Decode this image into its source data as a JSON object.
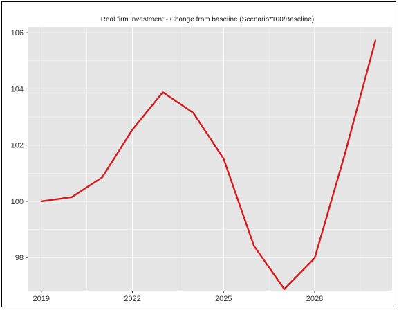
{
  "chart_data": {
    "type": "line",
    "title": "Real firm investment - Change from baseline (Scenario*100/Baseline)",
    "xlabel": "",
    "ylabel": "",
    "x": [
      2019,
      2020,
      2021,
      2022,
      2023,
      2024,
      2025,
      2026,
      2027,
      2028,
      2029,
      2030
    ],
    "series": [
      {
        "values": [
          100.0,
          100.15,
          100.85,
          102.55,
          103.88,
          103.15,
          101.52,
          98.42,
          96.88,
          97.98,
          101.7,
          105.72
        ],
        "color": "#d7191c"
      }
    ],
    "xlim": [
      2018.55,
      2030.55
    ],
    "ylim": [
      96.8,
      106.2
    ],
    "x_ticks": [
      2019,
      2022,
      2025,
      2028
    ],
    "x_tick_labels": [
      "2019",
      "2022",
      "2025",
      "2028"
    ],
    "y_ticks": [
      98,
      100,
      102,
      104,
      106
    ],
    "y_tick_labels": [
      "98",
      "100",
      "102",
      "104",
      "106"
    ],
    "grid": true,
    "panel_background": "#e5e5e5",
    "grid_color": "#ffffff"
  }
}
